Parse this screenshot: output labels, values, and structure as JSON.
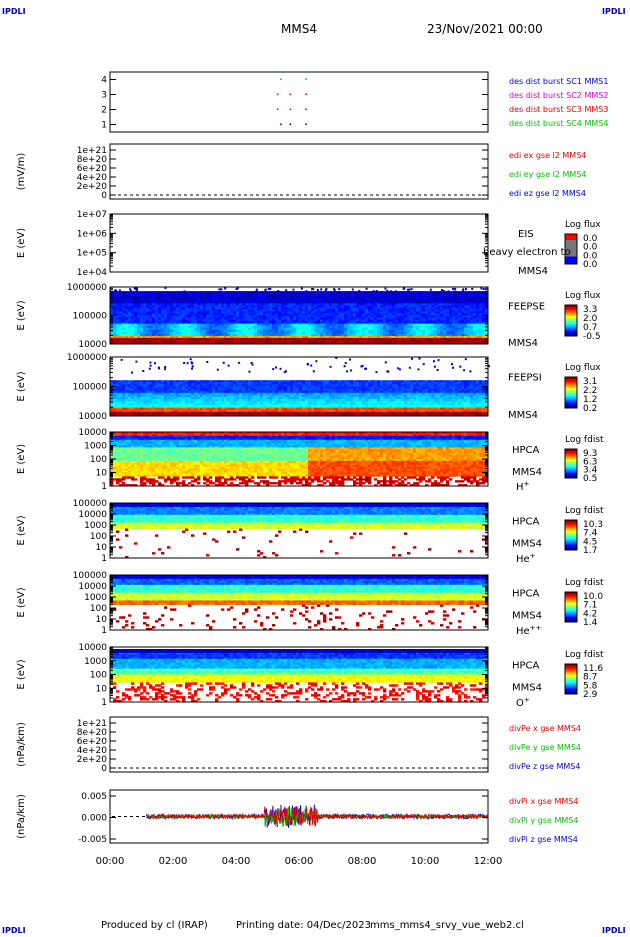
{
  "corners": {
    "tl": "IPDLI",
    "tr": "IPDLI",
    "bl": "IPDLI",
    "br": "IPDLI"
  },
  "header": {
    "spacecraft": "MMS4",
    "date": "23/Nov/2021 00:00"
  },
  "footer": {
    "produced": "Produced by cl (IRAP)",
    "printing": "Printing date: 04/Dec/2023",
    "file": "mms_mms4_srvy_vue_web2.cl"
  },
  "time_axis": {
    "ticks": [
      "00:00",
      "02:00",
      "04:00",
      "06:00",
      "08:00",
      "10:00",
      "12:00"
    ],
    "range_hours": [
      0,
      12
    ]
  },
  "chart_data": [
    {
      "id": "p1",
      "type": "scatter",
      "ylabel": "",
      "yticks": [
        "4",
        "3",
        "2",
        "1"
      ],
      "ylim": [
        0.5,
        4.5
      ],
      "legend": [
        {
          "text": "des dist burst SC1 MMS1",
          "color": "#0000c8"
        },
        {
          "text": "des dist burst SC2 MMS2",
          "color": "#d000d0"
        },
        {
          "text": "des dist burst SC3 MMS3",
          "color": "#e00000"
        },
        {
          "text": "des dist burst SC4 MMS4",
          "color": "#00c000"
        }
      ],
      "points": [
        {
          "x": 5.4,
          "y": 4,
          "c": "#00c000"
        },
        {
          "x": 6.2,
          "y": 4,
          "c": "#00c000"
        },
        {
          "x": 5.3,
          "y": 3,
          "c": "#d000d0"
        },
        {
          "x": 5.7,
          "y": 3,
          "c": "#e00000"
        },
        {
          "x": 6.2,
          "y": 3,
          "c": "#e00000"
        },
        {
          "x": 5.3,
          "y": 2,
          "c": "#d000d0"
        },
        {
          "x": 5.7,
          "y": 2,
          "c": "#d000d0"
        },
        {
          "x": 6.2,
          "y": 2,
          "c": "#e00000"
        },
        {
          "x": 5.4,
          "y": 1,
          "c": "#0000c8"
        },
        {
          "x": 5.7,
          "y": 1,
          "c": "#0000c8"
        },
        {
          "x": 6.2,
          "y": 1,
          "c": "#0000c8"
        }
      ]
    },
    {
      "id": "p2",
      "type": "line",
      "ylabel": "(mV/m)",
      "yticks": [
        "1e+21",
        "8e+20",
        "6e+20",
        "4e+20",
        "2e+20",
        "0"
      ],
      "ylim": [
        0,
        1e+21
      ],
      "legend": [
        {
          "text": "edi ex gse l2 MMS4",
          "color": "#e00000"
        },
        {
          "text": "edi ey gse l2 MMS4",
          "color": "#00c000"
        },
        {
          "text": "edi ez gse l2 MMS4",
          "color": "#0000c8"
        }
      ],
      "dashed_zero": true
    },
    {
      "id": "p3",
      "type": "heatmap",
      "ylabel": "E (eV)",
      "yticks": [
        "1e+07",
        "1e+06",
        "1e+05",
        "1e+04"
      ],
      "ylim": [
        10000.0,
        10000000.0
      ],
      "scale": "log",
      "side": [
        "EIS",
        "MMS4"
      ],
      "overlay_text": "heavy electron to",
      "cbar_title": "Log flux",
      "cbar_ticks": [
        "0.0",
        "0.0",
        "0.0",
        "0.0"
      ],
      "fill": "none"
    },
    {
      "id": "p4",
      "type": "heatmap",
      "ylabel": "E (eV)",
      "yticks": [
        "1000000",
        "100000",
        "10000"
      ],
      "ylim": [
        10000.0,
        1000000.0
      ],
      "scale": "log",
      "side": [
        "FEEPSE",
        "MMS4"
      ],
      "cbar_title": "Log flux",
      "cbar_ticks": [
        "3.3",
        "2.0",
        "0.7",
        "-0.5"
      ],
      "fill": "feepse"
    },
    {
      "id": "p5",
      "type": "heatmap",
      "ylabel": "E (eV)",
      "yticks": [
        "1000000",
        "100000",
        "10000"
      ],
      "ylim": [
        10000.0,
        1000000.0
      ],
      "scale": "log",
      "side": [
        "FEEPSI",
        "MMS4"
      ],
      "cbar_title": "Log flux",
      "cbar_ticks": [
        "3.1",
        "2.2",
        "1.2",
        "0.2"
      ],
      "fill": "feepsi"
    },
    {
      "id": "p6",
      "type": "heatmap",
      "ylabel": "E (eV)",
      "yticks": [
        "10000",
        "1000",
        "100",
        "10",
        "1"
      ],
      "ylim": [
        1,
        30000
      ],
      "scale": "log",
      "side": [
        "HPCA",
        "MMS4"
      ],
      "species": "H",
      "species_sup": "+",
      "cbar_title": "Log fdist",
      "cbar_ticks": [
        "9.3",
        "6.3",
        "3.4",
        "0.5"
      ],
      "fill": "hplus"
    },
    {
      "id": "p7",
      "type": "heatmap",
      "ylabel": "E (eV)",
      "yticks": [
        "100000",
        "10000",
        "1000",
        "100",
        "10",
        "1"
      ],
      "ylim": [
        1,
        100000
      ],
      "scale": "log",
      "side": [
        "HPCA",
        "MMS4"
      ],
      "species": "He",
      "species_sup": "+",
      "cbar_title": "Log fdist",
      "cbar_ticks": [
        "10.3",
        "7.4",
        "4.5",
        "1.7"
      ],
      "fill": "heplus"
    },
    {
      "id": "p8",
      "type": "heatmap",
      "ylabel": "E (eV)",
      "yticks": [
        "100000",
        "10000",
        "1000",
        "100",
        "10",
        "1"
      ],
      "ylim": [
        1,
        100000
      ],
      "scale": "log",
      "side": [
        "HPCA",
        "MMS4"
      ],
      "species": "He",
      "species_sup": "++",
      "cbar_title": "Log fdist",
      "cbar_ticks": [
        "10.0",
        "7.1",
        "4.2",
        "1.4"
      ],
      "fill": "heplusplus"
    },
    {
      "id": "p9",
      "type": "heatmap",
      "ylabel": "E (eV)",
      "yticks": [
        "10000",
        "1000",
        "100",
        "10",
        "1"
      ],
      "ylim": [
        1,
        30000
      ],
      "scale": "log",
      "side": [
        "HPCA",
        "MMS4"
      ],
      "species": "O",
      "species_sup": "+",
      "cbar_title": "Log fdist",
      "cbar_ticks": [
        "11.6",
        "8.7",
        "5.8",
        "2.9"
      ],
      "fill": "oplus"
    },
    {
      "id": "p10",
      "type": "line",
      "ylabel": "(nPa/km)",
      "yticks": [
        "1e+21",
        "8e+20",
        "6e+20",
        "4e+20",
        "2e+20",
        "0"
      ],
      "ylim": [
        0,
        1e+21
      ],
      "legend": [
        {
          "text": "divPe x gse MMS4",
          "color": "#e00000"
        },
        {
          "text": "divPe y gse MMS4",
          "color": "#00c000"
        },
        {
          "text": "divPe z gse MMS4",
          "color": "#0000c8"
        }
      ],
      "dashed_zero": true
    },
    {
      "id": "p11",
      "type": "line",
      "ylabel": "(nPa/km)",
      "yticks": [
        "0.005",
        "0.000",
        "-0.005"
      ],
      "ylim": [
        -0.008,
        0.008
      ],
      "legend": [
        {
          "text": "divPi x gse MMS4",
          "color": "#e00000"
        },
        {
          "text": "divPi y gse MMS4",
          "color": "#00c000"
        },
        {
          "text": "divPi z gse MMS4",
          "color": "#0000c8"
        }
      ],
      "dashed_zero": true,
      "data_start_hour": 1.15
    }
  ]
}
